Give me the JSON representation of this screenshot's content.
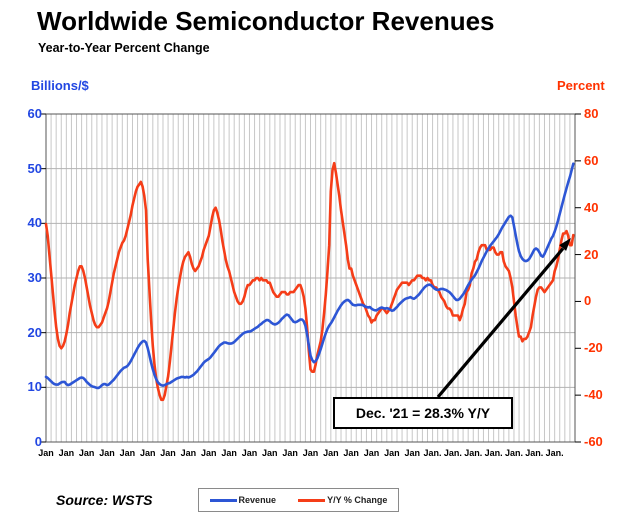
{
  "title": "Worldwide Semiconductor Revenues",
  "subtitle": "Year-to-Year Percent Change",
  "source_label": "Source: WSTS",
  "annotation": {
    "text": "Dec. '21 = 28.3% Y/Y"
  },
  "left_axis": {
    "label": "Billions/$",
    "text_color": "#2247e2",
    "min": 0,
    "max": 60,
    "ticks": [
      60,
      50,
      40,
      30,
      20,
      10,
      0
    ]
  },
  "right_axis": {
    "label": "Percent",
    "text_color": "#ff3200",
    "min": -60,
    "max": 80,
    "ticks": [
      80,
      60,
      40,
      20,
      0,
      -20,
      -40,
      -60
    ]
  },
  "x_axis": {
    "labels": [
      {
        "m": "Jan",
        "y": "'96"
      },
      {
        "m": "Jan",
        "y": "'97"
      },
      {
        "m": "Jan",
        "y": "'98"
      },
      {
        "m": "Jan",
        "y": "'99"
      },
      {
        "m": "Jan",
        "y": "'00"
      },
      {
        "m": "Jan",
        "y": "'01"
      },
      {
        "m": "Jan",
        "y": "'02"
      },
      {
        "m": "Jan",
        "y": "'03"
      },
      {
        "m": "Jan",
        "y": "'04"
      },
      {
        "m": "Jan",
        "y": "'05"
      },
      {
        "m": "Jan",
        "y": "'06"
      },
      {
        "m": "Jan",
        "y": "'07"
      },
      {
        "m": "Jan",
        "y": "'08"
      },
      {
        "m": "Jan",
        "y": "'09"
      },
      {
        "m": "Jan",
        "y": "'10"
      },
      {
        "m": "Jan",
        "y": "'11"
      },
      {
        "m": "Jan",
        "y": "'12"
      },
      {
        "m": "Jan",
        "y": "'13"
      },
      {
        "m": "Jan",
        "y": "'14"
      },
      {
        "m": "Jan.",
        "y": "'15"
      },
      {
        "m": "Jan.",
        "y": "'16"
      },
      {
        "m": "Jan.",
        "y": "'17"
      },
      {
        "m": "Jan.",
        "y": "'18"
      },
      {
        "m": "Jan.",
        "y": "'19"
      },
      {
        "m": "Jan.",
        "y": "'20"
      },
      {
        "m": "Jan.",
        "y": "'21"
      }
    ]
  },
  "legend": [
    {
      "label": "Revenue",
      "color": "#2d56d5"
    },
    {
      "label": "Y/Y % Change",
      "color": "#f53d18"
    }
  ],
  "chart_data": {
    "type": "line",
    "frequency": "monthly",
    "x_start": "Jan 1996",
    "x_end": "Dec 2021",
    "grid": {
      "vertical": "quarterly",
      "horizontal": "every 10 left-units"
    },
    "legend_position": "bottom-center",
    "left_ylim": [
      0,
      60
    ],
    "right_ylim": [
      -60,
      80
    ],
    "series": [
      {
        "name": "Y/Y % Change",
        "axis": "right",
        "unit": "percent",
        "color": "#f53d18",
        "values": [
          33,
          28,
          20,
          12,
          4,
          -4,
          -11,
          -16,
          -19,
          -20,
          -19,
          -17,
          -14,
          -10,
          -5,
          -1,
          3,
          7,
          10,
          13,
          15,
          15,
          13,
          10,
          6,
          2,
          -2,
          -5,
          -8,
          -10,
          -11,
          -11,
          -10,
          -9,
          -7,
          -5,
          -3,
          0,
          4,
          8,
          12,
          15,
          18,
          21,
          23,
          25,
          26,
          28,
          31,
          34,
          37,
          41,
          44,
          47,
          49,
          50,
          51,
          49,
          45,
          39,
          18,
          5,
          -8,
          -19,
          -27,
          -33,
          -37,
          -40,
          -42,
          -42,
          -40,
          -36,
          -32,
          -26,
          -19,
          -12,
          -5,
          1,
          6,
          10,
          14,
          17,
          19,
          20,
          21,
          19,
          16,
          14,
          13,
          14,
          15,
          17,
          19,
          22,
          24,
          26,
          28,
          32,
          36,
          39,
          40,
          38,
          35,
          31,
          26,
          22,
          18,
          15,
          13,
          10,
          7,
          4,
          2,
          0,
          -1,
          -1,
          0,
          2,
          5,
          7,
          7,
          8,
          9,
          9,
          10,
          10,
          9,
          10,
          9,
          9,
          9,
          8,
          8,
          6,
          4,
          3,
          2,
          2,
          3,
          4,
          4,
          4,
          3,
          3,
          4,
          4,
          4,
          5,
          6,
          7,
          7,
          5,
          2,
          -3,
          -11,
          -21,
          -29,
          -30,
          -30,
          -27,
          -23,
          -20,
          -17,
          -12,
          -5,
          3,
          13,
          24,
          47,
          56,
          59,
          55,
          50,
          45,
          39,
          34,
          29,
          24,
          18,
          14,
          14,
          11,
          9,
          7,
          5,
          3,
          1,
          -1,
          -2,
          -4,
          -6,
          -7,
          -9,
          -8,
          -8,
          -6,
          -5,
          -4,
          -3,
          -3,
          -4,
          -5,
          -4,
          -3,
          -1,
          1,
          3,
          5,
          6,
          7,
          8,
          8,
          8,
          8,
          7,
          8,
          9,
          9,
          10,
          11,
          11,
          11,
          10,
          10,
          9,
          10,
          9,
          9,
          7,
          6,
          6,
          5,
          4,
          2,
          1,
          0,
          -2,
          -3,
          -3,
          -4,
          -6,
          -6,
          -6,
          -6,
          -8,
          -6,
          -3,
          -1,
          4,
          5,
          7,
          12,
          14,
          17,
          18,
          21,
          23,
          24,
          24,
          24,
          22,
          22,
          22,
          23,
          23,
          21,
          20,
          20,
          21,
          21,
          17,
          15,
          14,
          13,
          10,
          6,
          0,
          -6,
          -11,
          -15,
          -15,
          -17,
          -16,
          -16,
          -15,
          -13,
          -11,
          -6,
          -2,
          2,
          5,
          6,
          6,
          5,
          4,
          5,
          6,
          7,
          8,
          9,
          13,
          15,
          18,
          22,
          26,
          29,
          29,
          30,
          28,
          24,
          24,
          28.3
        ]
      },
      {
        "name": "Revenue",
        "axis": "left",
        "unit": "US$ billions per month",
        "color": "#2d56d5",
        "values": [
          11.9,
          11.7,
          11.4,
          11.1,
          10.8,
          10.6,
          10.5,
          10.5,
          10.7,
          10.9,
          11.0,
          11.0,
          10.6,
          10.4,
          10.5,
          10.7,
          10.9,
          11.1,
          11.3,
          11.5,
          11.7,
          11.8,
          11.7,
          11.4,
          11.0,
          10.7,
          10.4,
          10.2,
          10.1,
          10.0,
          9.9,
          9.9,
          10.1,
          10.4,
          10.6,
          10.6,
          10.4,
          10.5,
          10.8,
          11.1,
          11.4,
          11.8,
          12.2,
          12.6,
          13.0,
          13.3,
          13.6,
          13.7,
          13.9,
          14.3,
          14.8,
          15.4,
          16.0,
          16.6,
          17.2,
          17.7,
          18.1,
          18.4,
          18.5,
          18.2,
          17.2,
          15.9,
          14.5,
          13.3,
          12.3,
          11.5,
          10.9,
          10.6,
          10.4,
          10.3,
          10.4,
          10.6,
          10.7,
          10.8,
          11.0,
          11.2,
          11.4,
          11.6,
          11.7,
          11.8,
          11.9,
          11.9,
          11.8,
          11.9,
          11.8,
          11.9,
          12.1,
          12.3,
          12.6,
          12.9,
          13.3,
          13.7,
          14.1,
          14.5,
          14.8,
          15.0,
          15.2,
          15.5,
          15.9,
          16.3,
          16.7,
          17.1,
          17.5,
          17.8,
          18.0,
          18.2,
          18.2,
          18.1,
          18.0,
          18.0,
          18.1,
          18.3,
          18.6,
          18.9,
          19.2,
          19.5,
          19.8,
          20.0,
          20.1,
          20.2,
          20.2,
          20.3,
          20.5,
          20.7,
          20.9,
          21.1,
          21.4,
          21.6,
          21.9,
          22.1,
          22.3,
          22.3,
          22.1,
          21.8,
          21.6,
          21.5,
          21.6,
          21.8,
          22.1,
          22.5,
          22.8,
          23.1,
          23.3,
          23.2,
          22.8,
          22.4,
          22.0,
          21.9,
          22.0,
          22.2,
          22.4,
          22.4,
          22.1,
          21.3,
          19.7,
          17.7,
          15.8,
          15.0,
          14.6,
          14.8,
          15.3,
          16.1,
          17.0,
          18.0,
          19.0,
          19.9,
          20.7,
          21.3,
          21.7,
          22.2,
          22.8,
          23.4,
          24.0,
          24.5,
          25.0,
          25.4,
          25.7,
          25.9,
          26.0,
          25.8,
          25.4,
          25.1,
          25.0,
          25.0,
          25.1,
          25.1,
          25.1,
          25.0,
          24.8,
          24.7,
          24.6,
          24.7,
          24.4,
          24.2,
          24.1,
          24.1,
          24.3,
          24.5,
          24.6,
          24.5,
          24.4,
          24.5,
          24.4,
          24.2,
          24.0,
          24.1,
          24.4,
          24.7,
          25.1,
          25.4,
          25.7,
          26.0,
          26.2,
          26.3,
          26.4,
          26.5,
          26.3,
          26.2,
          26.4,
          26.7,
          27.0,
          27.4,
          27.8,
          28.2,
          28.5,
          28.7,
          28.8,
          28.7,
          28.4,
          28.1,
          27.9,
          27.8,
          27.9,
          28.0,
          28.0,
          27.9,
          27.8,
          27.6,
          27.4,
          27.1,
          26.7,
          26.3,
          26.0,
          26.0,
          26.2,
          26.6,
          27.0,
          27.5,
          28.1,
          28.7,
          29.2,
          29.7,
          30.1,
          30.5,
          31.1,
          31.7,
          32.4,
          33.1,
          33.7,
          34.3,
          34.9,
          35.4,
          35.9,
          36.3,
          36.7,
          37.1,
          37.5,
          38.0,
          38.6,
          39.2,
          39.7,
          40.2,
          40.7,
          41.2,
          41.4,
          41.1,
          39.5,
          37.8,
          36.2,
          34.9,
          34.0,
          33.5,
          33.2,
          33.1,
          33.2,
          33.5,
          34.0,
          34.6,
          35.2,
          35.4,
          35.2,
          34.7,
          34.1,
          33.9,
          34.4,
          35.1,
          35.8,
          36.5,
          37.2,
          37.7,
          38.5,
          39.4,
          40.5,
          41.7,
          42.9,
          44.1,
          45.3,
          46.4,
          47.5,
          48.5,
          49.7,
          50.9
        ]
      }
    ]
  }
}
